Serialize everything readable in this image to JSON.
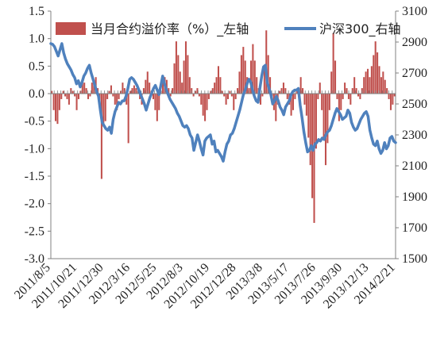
{
  "chart_data": {
    "type": "bar+line",
    "legend": {
      "bar_label": "当月合约溢价率（%）_左轴",
      "line_label": "沪深300_右轴",
      "placement": "top"
    },
    "y_left": {
      "ylim": [
        -3.0,
        1.5
      ],
      "ticks": [
        "1.5",
        "1.0",
        "0.5",
        "0.0",
        "-0.5",
        "-1.0",
        "-1.5",
        "-2.0",
        "-2.5",
        "-3.0"
      ],
      "tick_values": [
        1.5,
        1.0,
        0.5,
        0.0,
        -0.5,
        -1.0,
        -1.5,
        -2.0,
        -2.5,
        -3.0
      ]
    },
    "y_right": {
      "ylim": [
        1500,
        3100
      ],
      "ticks": [
        "3100",
        "2900",
        "2700",
        "2500",
        "2300",
        "2100",
        "1900",
        "1700",
        "1500"
      ],
      "tick_values": [
        3100,
        2900,
        2700,
        2500,
        2300,
        2100,
        1900,
        1700,
        1500
      ]
    },
    "x_ticks": [
      "2011/8/5",
      "2011/10/21",
      "2011/12/30",
      "2012/3/16",
      "2012/5/25",
      "2012/8/3",
      "2012/10/19",
      "2012/12/28",
      "2013/3/8",
      "2013/5/17",
      "2013/7/26",
      "2013/9/30",
      "2013/12/13",
      "2014/2/21"
    ],
    "grid": false,
    "series": [
      {
        "name": "当月合约溢价率（%）_左轴",
        "kind": "bar",
        "color": "#c0504d",
        "values": [
          0.05,
          -0.3,
          -0.5,
          -0.55,
          -0.3,
          -0.1,
          0.05,
          -0.05,
          -0.1,
          -0.2,
          0.1,
          0.05,
          -0.05,
          -0.3,
          -0.1,
          0.05,
          0.25,
          0.2,
          0.1,
          -0.1,
          -0.05,
          0.2,
          0.25,
          0.3,
          0.1,
          -0.2,
          -1.55,
          -0.6,
          -0.5,
          -0.1,
          0.05,
          0.15,
          -0.05,
          -0.2,
          -0.3,
          -0.1,
          0.05,
          0.2,
          0.1,
          -0.2,
          -0.9,
          0.05,
          0.1,
          0.15,
          0.1,
          0.05,
          -0.1,
          -0.2,
          0.1,
          0.25,
          0.4,
          0.2,
          0.05,
          -0.1,
          -0.3,
          -0.5,
          -0.3,
          0.05,
          0.2,
          0.3,
          0.25,
          0.1,
          -0.05,
          0.1,
          0.55,
          0.95,
          0.7,
          0.4,
          0.2,
          0.6,
          0.95,
          0.7,
          0.3,
          0.1,
          -0.05,
          0.05,
          0.1,
          -0.05,
          -0.2,
          -0.4,
          -0.5,
          -0.3,
          -0.1,
          0.05,
          0.1,
          0.2,
          0.3,
          0.5,
          0.3,
          0.05,
          -0.05,
          -0.2,
          -0.1,
          0.05,
          -0.05,
          -0.3,
          -0.1,
          0.1,
          0.4,
          0.7,
          0.85,
          0.6,
          0.3,
          0.1,
          0.6,
          0.9,
          0.6,
          0.3,
          0.1,
          -0.2,
          -0.05,
          0.5,
          1.15,
          0.7,
          0.3,
          -0.05,
          -0.3,
          -0.5,
          -0.2,
          0.05,
          0.1,
          0.2,
          0.1,
          -0.1,
          -0.2,
          -0.4,
          -0.3,
          -0.1,
          0.05,
          0.1,
          0.3,
          0.1,
          -0.2,
          -0.4,
          -0.8,
          -1.3,
          -1.9,
          -2.35,
          -1.0,
          -0.1,
          0.2,
          -0.3,
          -0.8,
          -1.3,
          -0.9,
          -0.3,
          0.4,
          1.1,
          0.6,
          -0.1,
          -0.5,
          -0.3,
          -0.1,
          0.2,
          0.1,
          -0.1,
          -0.2,
          0.1,
          0.3,
          0.1,
          -0.05,
          -0.1,
          0.1,
          0.3,
          0.4,
          0.45,
          0.3,
          0.5,
          0.7,
          0.95,
          0.75,
          0.5,
          0.3,
          0.4,
          0.25,
          0.1,
          -0.1,
          -0.3,
          -0.2,
          -0.05
        ]
      },
      {
        "name": "沪深300_右轴",
        "kind": "line",
        "color": "#4f81bd",
        "values": [
          2890,
          2885,
          2870,
          2840,
          2810,
          2850,
          2890,
          2830,
          2790,
          2760,
          2740,
          2720,
          2690,
          2670,
          2630,
          2650,
          2610,
          2640,
          2680,
          2700,
          2730,
          2750,
          2700,
          2660,
          2620,
          2580,
          2550,
          2460,
          2380,
          2360,
          2340,
          2330,
          2350,
          2310,
          2400,
          2450,
          2480,
          2510,
          2500,
          2520,
          2520,
          2550,
          2600,
          2660,
          2670,
          2660,
          2640,
          2620,
          2590,
          2560,
          2530,
          2500,
          2460,
          2500,
          2540,
          2570,
          2600,
          2620,
          2590,
          2560,
          2620,
          2680,
          2630,
          2590,
          2560,
          2530,
          2510,
          2490,
          2470,
          2440,
          2420,
          2390,
          2360,
          2350,
          2360,
          2340,
          2300,
          2280,
          2200,
          2250,
          2300,
          2260,
          2210,
          2170,
          2260,
          2280,
          2290,
          2300,
          2240,
          2260,
          2190,
          2200,
          2180,
          2160,
          2130,
          2190,
          2240,
          2260,
          2300,
          2310,
          2340,
          2380,
          2420,
          2460,
          2510,
          2560,
          2590,
          2630,
          2660,
          2640,
          2590,
          2550,
          2520,
          2510,
          2600,
          2680,
          2740,
          2750,
          2640,
          2600,
          2560,
          2500,
          2520,
          2550,
          2520,
          2480,
          2460,
          2430,
          2480,
          2500,
          2520,
          2560,
          2580,
          2590,
          2590,
          2600,
          2490,
          2410,
          2320,
          2250,
          2190,
          2200,
          2230,
          2200,
          2240,
          2250,
          2270,
          2260,
          2280,
          2270,
          2300,
          2320,
          2330,
          2360,
          2400,
          2440,
          2470,
          2450,
          2430,
          2400,
          2410,
          2420,
          2460,
          2440,
          2380,
          2350,
          2330,
          2340,
          2370,
          2400,
          2420,
          2440,
          2450,
          2420,
          2330,
          2280,
          2240,
          2230,
          2260,
          2210,
          2180,
          2200,
          2250,
          2210,
          2230,
          2280,
          2290,
          2260,
          2250
        ]
      }
    ]
  }
}
